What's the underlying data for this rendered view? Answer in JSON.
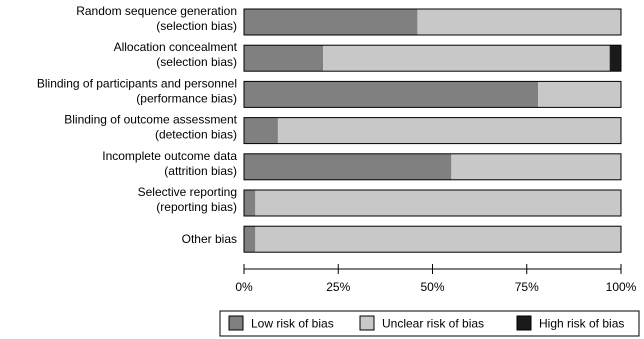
{
  "chart_data": {
    "type": "bar",
    "orientation": "horizontal",
    "stacked": true,
    "categories": [
      [
        "Random sequence generation",
        "(selection bias)"
      ],
      [
        "Allocation concealment",
        "(selection bias)"
      ],
      [
        "Blinding of participants and personnel",
        "(performance bias)"
      ],
      [
        "Blinding of outcome assessment",
        "(detection bias)"
      ],
      [
        "Incomplete outcome data",
        "(attrition bias)"
      ],
      [
        "Selective reporting",
        "(reporting bias)"
      ],
      [
        "Other bias"
      ]
    ],
    "series": [
      {
        "name": "Low risk of bias",
        "color": "#808080",
        "values": [
          46,
          21,
          78,
          9,
          55,
          3,
          3
        ]
      },
      {
        "name": "Unclear risk of bias",
        "color": "#c8c8c8",
        "values": [
          54,
          76,
          22,
          91,
          45,
          97,
          97
        ]
      },
      {
        "name": "High risk of bias",
        "color": "#1a1a1a",
        "values": [
          0,
          3,
          0,
          0,
          0,
          0,
          0
        ]
      }
    ],
    "xaxis": {
      "ticks": [
        "0%",
        "25%",
        "50%",
        "75%",
        "100%"
      ],
      "range": [
        0,
        100
      ]
    },
    "legend_position": "bottom",
    "grid": false
  }
}
